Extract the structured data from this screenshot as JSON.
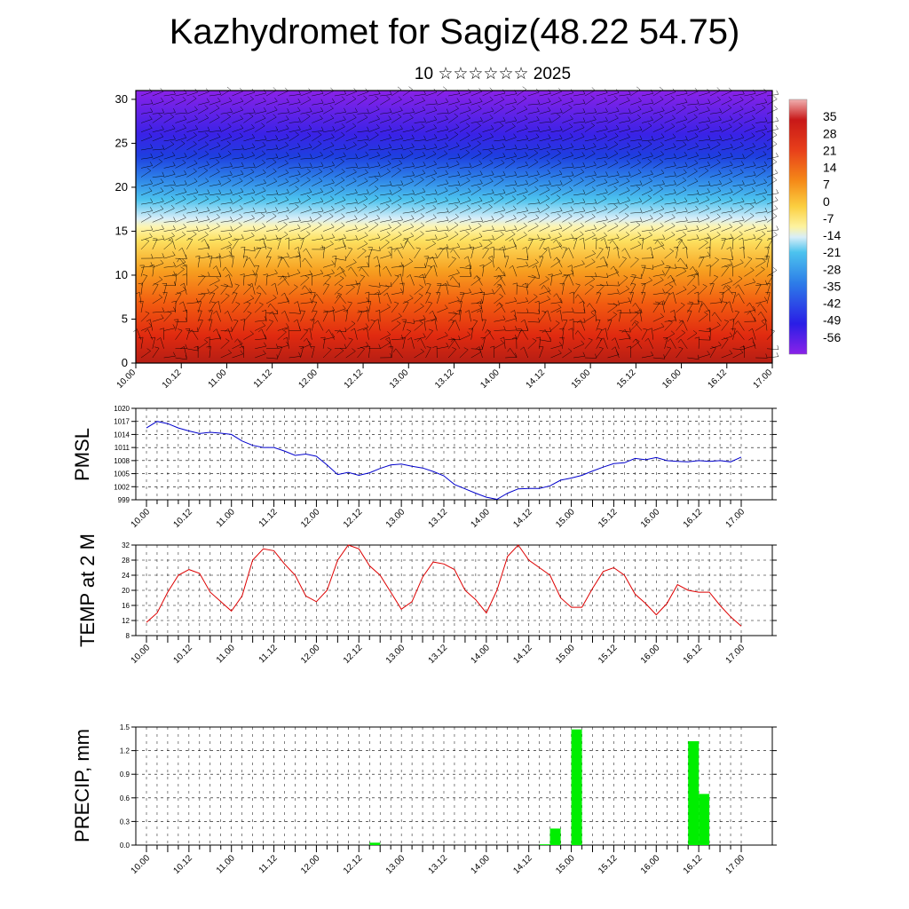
{
  "title": "Kazhydromet for Sagiz(48.22 54.75)",
  "subtitle": "10 ☆☆☆☆☆☆ 2025",
  "time_ticks": [
    "10.00",
    "10.12",
    "11.00",
    "11.12",
    "12.00",
    "12.12",
    "13.00",
    "13.12",
    "14.00",
    "14.12",
    "15.00",
    "15.12",
    "16.00",
    "16.12",
    "17.00"
  ],
  "colors": {
    "pmsl_line": "#0000cc",
    "temp_line": "#dd0000",
    "precip_bar": "#00ee00"
  },
  "chart_data": [
    {
      "type": "heatmap",
      "name": "temperature-height-section",
      "y_ticks": [
        "0",
        "5",
        "10",
        "15",
        "20",
        "25",
        "30"
      ],
      "ylim": [
        0,
        31
      ],
      "colorbar_labels": [
        "35",
        "28",
        "21",
        "14",
        "7",
        "0",
        "-7",
        "-14",
        "-21",
        "-28",
        "-35",
        "-42",
        "-49",
        "-56"
      ],
      "colorbar_range": [
        -63,
        42
      ],
      "overlay": "wind barbs"
    },
    {
      "type": "line",
      "ylabel": "PMSL",
      "y_ticks": [
        "1020",
        "1017",
        "1014",
        "1011",
        "1008",
        "1005",
        "1002",
        "999"
      ],
      "ylim": [
        999,
        1020
      ],
      "x_hours": [
        0,
        3,
        6,
        9,
        12,
        15,
        18,
        21,
        24,
        27,
        30,
        33,
        36,
        39,
        42,
        45,
        48,
        51,
        54,
        57,
        60,
        63,
        66,
        69,
        72,
        75,
        78,
        81,
        84,
        87,
        90,
        93,
        96,
        99,
        102,
        105,
        108,
        111,
        114,
        117,
        120,
        123,
        126,
        129,
        132,
        135,
        138,
        141,
        144,
        147,
        150,
        153,
        156,
        159,
        162,
        165,
        168
      ],
      "values": [
        1015.5,
        1017.0,
        1016.5,
        1015.5,
        1014.8,
        1014.2,
        1014.5,
        1014.3,
        1014.0,
        1012.5,
        1011.5,
        1011.0,
        1011.0,
        1010.2,
        1009.2,
        1009.5,
        1009.0,
        1007.0,
        1004.8,
        1005.3,
        1004.6,
        1005.2,
        1006.2,
        1007.0,
        1007.2,
        1006.7,
        1006.3,
        1005.5,
        1004.5,
        1002.5,
        1001.5,
        1000.5,
        999.6,
        999.1,
        1000.5,
        1001.5,
        1001.6,
        1001.6,
        1002.2,
        1003.5,
        1004.0,
        1004.6,
        1005.6,
        1006.5,
        1007.3,
        1007.5,
        1008.5,
        1008.2,
        1008.7,
        1008.0,
        1007.8,
        1007.7,
        1008.0,
        1007.8,
        1008.0,
        1007.7,
        1008.8
      ]
    },
    {
      "type": "line",
      "ylabel": "TEMP at 2 M",
      "y_ticks": [
        "32",
        "28",
        "24",
        "20",
        "16",
        "12",
        "8"
      ],
      "ylim": [
        8,
        32
      ],
      "x_hours": [
        0,
        3,
        6,
        9,
        12,
        15,
        18,
        21,
        24,
        27,
        30,
        33,
        36,
        39,
        42,
        45,
        48,
        51,
        54,
        57,
        60,
        63,
        66,
        69,
        72,
        75,
        78,
        81,
        84,
        87,
        90,
        93,
        96,
        99,
        102,
        105,
        108,
        111,
        114,
        117,
        120,
        123,
        126,
        129,
        132,
        135,
        138,
        141,
        144,
        147,
        150,
        153,
        156,
        159,
        162,
        165,
        168
      ],
      "values": [
        11.5,
        14,
        19.5,
        24,
        25.5,
        24.5,
        19.5,
        17,
        14.5,
        18.5,
        28,
        31,
        30.5,
        27,
        24,
        18.5,
        17,
        20,
        28,
        32,
        31,
        26.5,
        24,
        19.5,
        15,
        17,
        23.5,
        27.5,
        27,
        25.5,
        20,
        17.5,
        14,
        20,
        29,
        32,
        28,
        26,
        24,
        18,
        15.5,
        15.5,
        20.5,
        25,
        26,
        24,
        19,
        16.5,
        13.5,
        16.5,
        21.5,
        20,
        19.5,
        19.5,
        16,
        13,
        10.5
      ]
    },
    {
      "type": "bar",
      "ylabel": "PRECIP, mm",
      "y_ticks": [
        "1.5",
        "1.2",
        "0.9",
        "0.6",
        "0.3",
        "0.0"
      ],
      "ylim": [
        0,
        1.5
      ],
      "bar_width_hours": 3,
      "bars": [
        {
          "start_hour": 63,
          "value": 0.03
        },
        {
          "start_hour": 111,
          "value": 0.01
        },
        {
          "start_hour": 114,
          "value": 0.21
        },
        {
          "start_hour": 120,
          "value": 1.47
        },
        {
          "start_hour": 153,
          "value": 1.32
        },
        {
          "start_hour": 156,
          "value": 0.65
        }
      ]
    }
  ]
}
